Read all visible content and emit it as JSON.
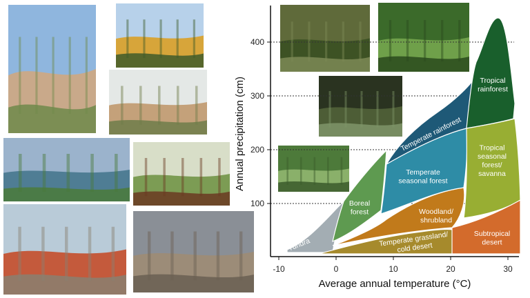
{
  "chart_data": {
    "type": "area",
    "xlabel": "Average annual temperature (°C)",
    "ylabel": "Annual precipitation (cm)",
    "xlim": [
      -12,
      32
    ],
    "ylim": [
      0,
      450
    ],
    "x_ticks": [
      "-10",
      "0",
      "10",
      "20",
      "30"
    ],
    "y_ticks": [
      "100",
      "200",
      "300",
      "400"
    ],
    "grid": "dotted horizontal at 100, 200, 300, 400",
    "regions": [
      {
        "name": "Tundra",
        "lines": [
          "Tundra"
        ],
        "color": "#a3adb3"
      },
      {
        "name": "Boreal forest",
        "lines": [
          "Boreal",
          "forest"
        ],
        "color": "#5e9a50"
      },
      {
        "name": "Temperate grassland/ cold desert",
        "lines": [
          "Temperate grassland/",
          "cold desert"
        ],
        "color": "#a68a2c"
      },
      {
        "name": "Woodland/ shrubland",
        "lines": [
          "Woodland/",
          "shrubland"
        ],
        "color": "#c17a1b"
      },
      {
        "name": "Temperate seasonal forest",
        "lines": [
          "Temperate",
          "seasonal forest"
        ],
        "color": "#2e8ca6"
      },
      {
        "name": "Temperate rainforest",
        "lines": [
          "Temperate rainforest"
        ],
        "color": "#1e5977"
      },
      {
        "name": "Tropical rainforest",
        "lines": [
          "Tropical",
          "rainforest"
        ],
        "color": "#195f2c"
      },
      {
        "name": "Tropical seasonal forest/ savanna",
        "lines": [
          "Tropical",
          "seasonal",
          "forest/",
          "savanna"
        ],
        "color": "#98ae33"
      },
      {
        "name": "Subtropical desert",
        "lines": [
          "Subtropical",
          "desert"
        ],
        "color": "#d36b2c"
      }
    ]
  },
  "photos": [
    {
      "name": "desert-cactus-photo",
      "colors": [
        "#8fb6de",
        "#c9a98a",
        "#6f8a4a"
      ]
    },
    {
      "name": "savanna-tree-photo",
      "colors": [
        "#b7d1ea",
        "#d7a53a",
        "#3f5b2a"
      ]
    },
    {
      "name": "seasonal-woodland-photo",
      "colors": [
        "#e4e8e6",
        "#c4a17a",
        "#6f7d4a"
      ]
    },
    {
      "name": "boreal-lake-photo",
      "colors": [
        "#9bb3cc",
        "#4f7d94",
        "#4a7a3a"
      ]
    },
    {
      "name": "temperate-forest-photo",
      "colors": [
        "#d8dec8",
        "#7c9c54",
        "#6b3a22"
      ]
    },
    {
      "name": "tundra-photo",
      "colors": [
        "#b9cbd8",
        "#c45a3c",
        "#8a8070"
      ]
    },
    {
      "name": "cold-desert-photo",
      "colors": [
        "#8a8f96",
        "#9c8c78",
        "#6a5f52"
      ]
    },
    {
      "name": "temperate-rainforest-photo-1",
      "colors": [
        "#5f6a3a",
        "#3d5224",
        "#7d8a56"
      ]
    },
    {
      "name": "tropical-rainforest-photo",
      "colors": [
        "#3b6a2a",
        "#6fa04a",
        "#2a4a1c"
      ]
    },
    {
      "name": "temperate-rainforest-photo-2",
      "colors": [
        "#2a3320",
        "#4d5d36",
        "#7f9468"
      ]
    },
    {
      "name": "temperate-seasonal-photo",
      "colors": [
        "#4d7a3a",
        "#8ab06a",
        "#3a5a2a"
      ]
    }
  ]
}
